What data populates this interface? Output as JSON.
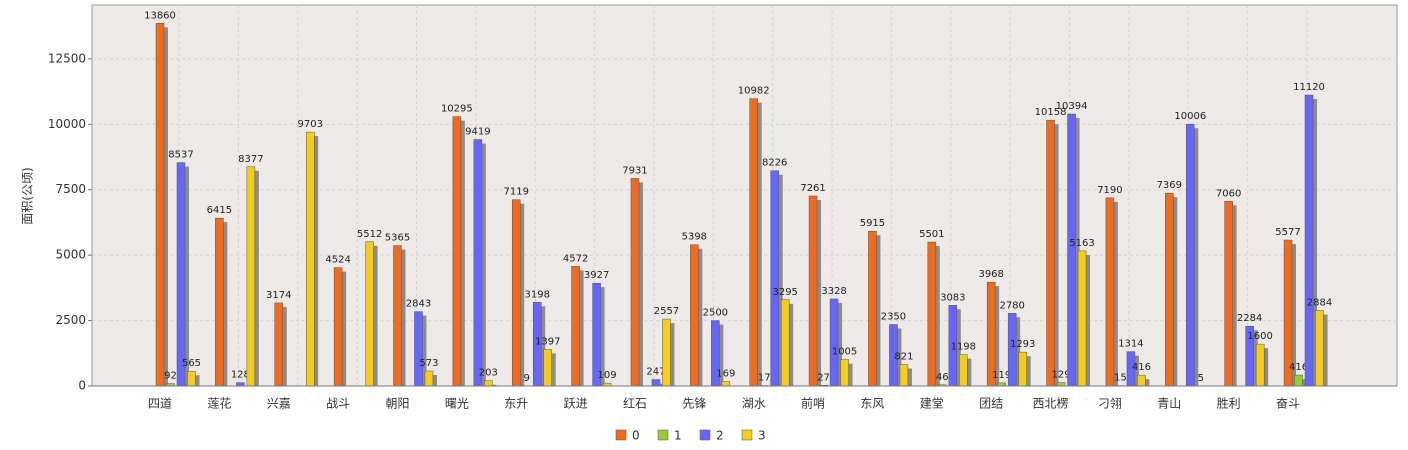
{
  "chart_data": {
    "type": "bar",
    "y_label": "面积(公顷)",
    "categories": [
      "四道",
      "莲花",
      "兴嘉",
      "战斗",
      "朝阳",
      "曙光",
      "东升",
      "跃进",
      "红石",
      "先锋",
      "湖水",
      "前哨",
      "东风",
      "建堂",
      "团结",
      "西北楞",
      "刁翎",
      "青山",
      "胜利",
      "奋斗"
    ],
    "series": [
      {
        "name": "0",
        "color": "#f26b1d",
        "values": [
          13860,
          6415,
          3174,
          4524,
          5365,
          10295,
          7119,
          4572,
          7931,
          5398,
          10982,
          7261,
          5915,
          5501,
          3968,
          10158,
          7190,
          7369,
          7060,
          5577
        ]
      },
      {
        "name": "1",
        "color": "#99cc33",
        "values": [
          92,
          null,
          null,
          null,
          null,
          null,
          9,
          null,
          null,
          null,
          17,
          27,
          null,
          46,
          119,
          129,
          15,
          null,
          null,
          416
        ]
      },
      {
        "name": "2",
        "color": "#6666ff",
        "values": [
          8537,
          128,
          null,
          null,
          2843,
          9419,
          3198,
          3927,
          247,
          2500,
          8226,
          3328,
          2350,
          3083,
          2780,
          10394,
          1314,
          10006,
          2284,
          11120
        ]
      },
      {
        "name": "3",
        "color": "#f5cc1a",
        "values": [
          565,
          8377,
          9703,
          5512,
          573,
          203,
          1397,
          109,
          2557,
          169,
          3295,
          1005,
          821,
          1198,
          1293,
          5163,
          416,
          5,
          1600,
          2884
        ]
      }
    ],
    "ylim": [
      0,
      14560
    ],
    "yticks": [
      0,
      2500,
      5000,
      7500,
      10000,
      12500
    ],
    "grid": true,
    "legend": "bottom"
  }
}
